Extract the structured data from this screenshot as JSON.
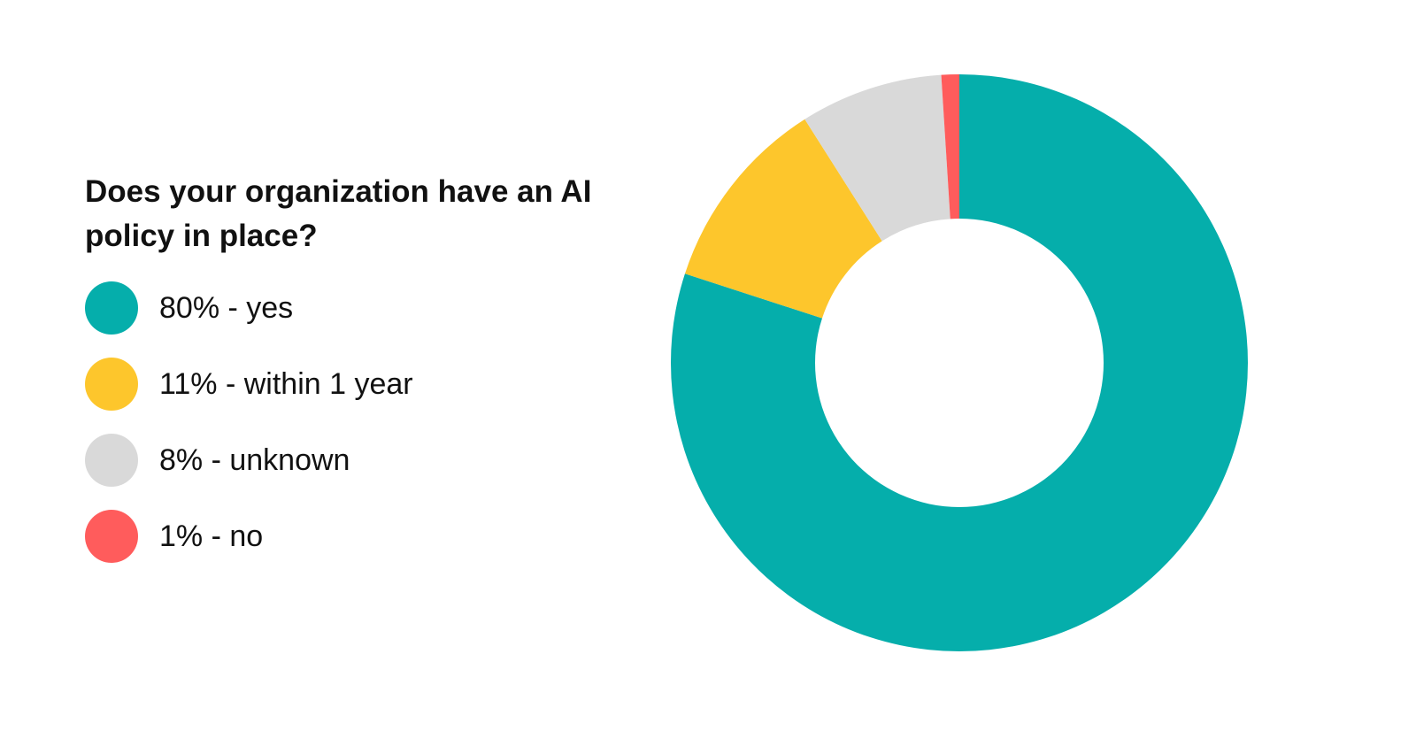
{
  "chart_data": {
    "type": "pie",
    "title": "Does your organization have an AI policy in place?",
    "donut": true,
    "legend_position": "left",
    "slices": [
      {
        "label": "80% - yes",
        "value": 80,
        "color": "#05AEAB"
      },
      {
        "label": "11% - within 1 year",
        "value": 11,
        "color": "#FDC62C"
      },
      {
        "label": "8% - unknown",
        "value": 8,
        "color": "#D9D9D9"
      },
      {
        "label": "1% - no",
        "value": 1,
        "color": "#FF5C5C"
      }
    ]
  }
}
